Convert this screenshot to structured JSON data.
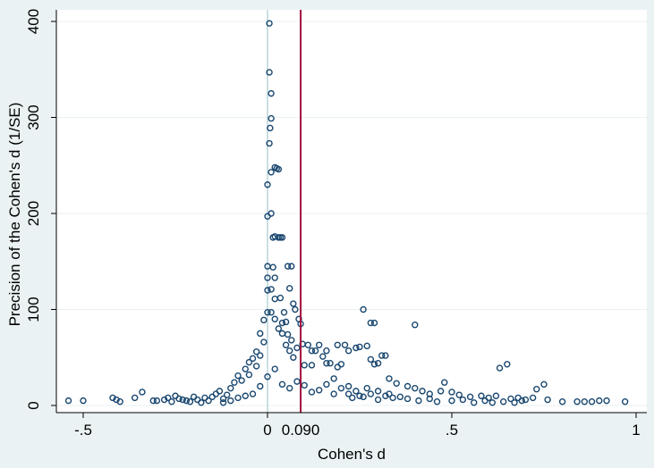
{
  "chart_data": {
    "type": "scatter",
    "title": "",
    "xlabel": "Cohen's d",
    "ylabel": "Precision of the Cohen's d (1/SE)",
    "xlim": [
      -0.55,
      1.0
    ],
    "ylim": [
      0,
      405
    ],
    "x_ticks": [
      {
        "value": -0.5,
        "label": "-.5"
      },
      {
        "value": 0,
        "label": "0"
      },
      {
        "value": 0.5,
        "label": ".5"
      },
      {
        "value": 1,
        "label": "1"
      }
    ],
    "y_ticks": [
      {
        "value": 0,
        "label": "0"
      },
      {
        "value": 100,
        "label": "100"
      },
      {
        "value": 200,
        "label": "200"
      },
      {
        "value": 300,
        "label": "300"
      },
      {
        "value": 400,
        "label": "400"
      }
    ],
    "reference_line": {
      "x": 0.09,
      "label": "0.090",
      "color": "#a0103c"
    },
    "zero_line": {
      "x": 0,
      "color": "#b8d4da"
    },
    "grid": "horizontal",
    "marker": {
      "shape": "hollow-circle",
      "color": "#1a476f"
    },
    "background_colors": {
      "outer": "#eaf2f3",
      "plot": "#ffffff"
    },
    "points": [
      [
        -0.54,
        5
      ],
      [
        -0.5,
        5
      ],
      [
        -0.42,
        8
      ],
      [
        -0.41,
        6
      ],
      [
        -0.4,
        4
      ],
      [
        -0.36,
        8
      ],
      [
        -0.34,
        14
      ],
      [
        -0.31,
        5
      ],
      [
        -0.28,
        6
      ],
      [
        -0.27,
        8
      ],
      [
        -0.25,
        10
      ],
      [
        -0.24,
        7
      ],
      [
        -0.22,
        5
      ],
      [
        -0.2,
        9
      ],
      [
        -0.19,
        6
      ],
      [
        -0.17,
        8
      ],
      [
        -0.15,
        9
      ],
      [
        -0.14,
        12
      ],
      [
        -0.13,
        15
      ],
      [
        -0.12,
        7
      ],
      [
        -0.11,
        11
      ],
      [
        -0.1,
        18
      ],
      [
        -0.09,
        24
      ],
      [
        -0.08,
        31
      ],
      [
        -0.07,
        26
      ],
      [
        -0.06,
        38
      ],
      [
        -0.05,
        32
      ],
      [
        -0.05,
        45
      ],
      [
        -0.04,
        49
      ],
      [
        -0.03,
        41
      ],
      [
        -0.03,
        56
      ],
      [
        -0.02,
        52
      ],
      [
        -0.02,
        75
      ],
      [
        -0.01,
        66
      ],
      [
        -0.01,
        89
      ],
      [
        0,
        97
      ],
      [
        0,
        120
      ],
      [
        0,
        133
      ],
      [
        0,
        145
      ],
      [
        0,
        197
      ],
      [
        0,
        230
      ],
      [
        0.005,
        273
      ],
      [
        0.007,
        289
      ],
      [
        0.01,
        299
      ],
      [
        0.01,
        325
      ],
      [
        0.005,
        347
      ],
      [
        0.005,
        398
      ],
      [
        0.01,
        243
      ],
      [
        0.01,
        200
      ],
      [
        0.015,
        175
      ],
      [
        0.02,
        248
      ],
      [
        0.025,
        247
      ],
      [
        0.03,
        246
      ],
      [
        0.02,
        176
      ],
      [
        0.03,
        175
      ],
      [
        0.035,
        175
      ],
      [
        0.04,
        175
      ],
      [
        0.015,
        144
      ],
      [
        0.02,
        133
      ],
      [
        0.01,
        121
      ],
      [
        0.02,
        111
      ],
      [
        0.01,
        97
      ],
      [
        0.02,
        90
      ],
      [
        0.03,
        80
      ],
      [
        0.04,
        75
      ],
      [
        0.05,
        63
      ],
      [
        0.06,
        57
      ],
      [
        0.07,
        50
      ],
      [
        0.055,
        145
      ],
      [
        0.065,
        145
      ],
      [
        0.06,
        122
      ],
      [
        0.07,
        106
      ],
      [
        0.075,
        100
      ],
      [
        0.045,
        97
      ],
      [
        0.05,
        87
      ],
      [
        0.035,
        112
      ],
      [
        0.04,
        86
      ],
      [
        0.055,
        74
      ],
      [
        0.065,
        68
      ],
      [
        0.085,
        90
      ],
      [
        0.09,
        85
      ],
      [
        0.095,
        64
      ],
      [
        0.11,
        63
      ],
      [
        0.12,
        57
      ],
      [
        0.13,
        57
      ],
      [
        0.14,
        63
      ],
      [
        0.15,
        51
      ],
      [
        0.16,
        44
      ],
      [
        0.17,
        44
      ],
      [
        0.19,
        40
      ],
      [
        0.2,
        43
      ],
      [
        0.21,
        63
      ],
      [
        0.22,
        57
      ],
      [
        0.24,
        60
      ],
      [
        0.25,
        61
      ],
      [
        0.26,
        100
      ],
      [
        0.27,
        62
      ],
      [
        0.28,
        86
      ],
      [
        0.29,
        86
      ],
      [
        0.28,
        48
      ],
      [
        0.29,
        43
      ],
      [
        0.31,
        52
      ],
      [
        0.32,
        52
      ],
      [
        0.33,
        28
      ],
      [
        0.35,
        23
      ],
      [
        0.38,
        20
      ],
      [
        0.4,
        18
      ],
      [
        0.42,
        15
      ],
      [
        0.44,
        12
      ],
      [
        0.47,
        15
      ],
      [
        0.48,
        24
      ],
      [
        0.5,
        14
      ],
      [
        0.52,
        11
      ],
      [
        0.55,
        9
      ],
      [
        0.58,
        10
      ],
      [
        0.6,
        8
      ],
      [
        0.62,
        10
      ],
      [
        0.63,
        39
      ],
      [
        0.65,
        43
      ],
      [
        0.66,
        7
      ],
      [
        0.68,
        8
      ],
      [
        0.7,
        6
      ],
      [
        0.72,
        8
      ],
      [
        0.73,
        17
      ],
      [
        0.75,
        22
      ],
      [
        0.76,
        6
      ],
      [
        0.8,
        4
      ],
      [
        0.84,
        4
      ],
      [
        0.86,
        4
      ],
      [
        0.88,
        4
      ],
      [
        0.9,
        5
      ],
      [
        0.92,
        5
      ],
      [
        0.97,
        4
      ],
      [
        0.4,
        84
      ],
      [
        0.3,
        44
      ],
      [
        0.19,
        63
      ],
      [
        0.16,
        57
      ],
      [
        0.12,
        42
      ],
      [
        0.1,
        42
      ],
      [
        0.08,
        60
      ],
      [
        0.18,
        12
      ],
      [
        0.22,
        20
      ],
      [
        0.23,
        8
      ],
      [
        0.25,
        10
      ],
      [
        0.27,
        18
      ],
      [
        0.3,
        6
      ],
      [
        0.33,
        12
      ],
      [
        0.36,
        9
      ],
      [
        0.38,
        7
      ],
      [
        0.41,
        5
      ],
      [
        0.44,
        7
      ],
      [
        0.46,
        4
      ],
      [
        0.5,
        5
      ],
      [
        0.53,
        6
      ],
      [
        0.56,
        3
      ],
      [
        0.59,
        5
      ],
      [
        0.61,
        3
      ],
      [
        0.64,
        4
      ],
      [
        0.67,
        3
      ],
      [
        0.69,
        5
      ],
      [
        -0.3,
        5
      ],
      [
        -0.26,
        4
      ],
      [
        -0.23,
        6
      ],
      [
        -0.21,
        4
      ],
      [
        -0.18,
        3
      ],
      [
        -0.16,
        5
      ],
      [
        -0.12,
        3
      ],
      [
        -0.1,
        5
      ],
      [
        -0.08,
        8
      ],
      [
        -0.06,
        10
      ],
      [
        -0.04,
        12
      ],
      [
        -0.02,
        20
      ],
      [
        0.0,
        30
      ],
      [
        0.02,
        38
      ],
      [
        0.04,
        22
      ],
      [
        0.06,
        18
      ],
      [
        0.08,
        25
      ],
      [
        0.1,
        21
      ],
      [
        0.12,
        14
      ],
      [
        0.14,
        16
      ],
      [
        0.16,
        22
      ],
      [
        0.18,
        28
      ],
      [
        0.2,
        18
      ],
      [
        0.22,
        12
      ],
      [
        0.24,
        15
      ],
      [
        0.26,
        9
      ],
      [
        0.28,
        12
      ],
      [
        0.3,
        15
      ],
      [
        0.32,
        10
      ],
      [
        0.34,
        8
      ]
    ]
  }
}
